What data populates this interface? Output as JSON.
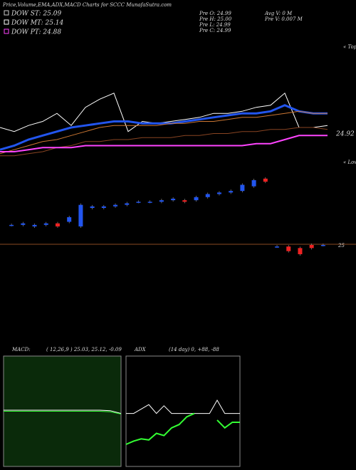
{
  "header": {
    "title": "Price,Volume,EMA,ADX,MACD Charts for SCCC MunafaSutra.com",
    "dow": [
      {
        "label": "DOW ST: 25.09",
        "color": "#cccccc"
      },
      {
        "label": "DOW MT: 25.14",
        "color": "#ffffff"
      },
      {
        "label": "DOW PT: 24.88",
        "color": "#ff44ff"
      }
    ],
    "info": [
      "Pre  O: 24.99",
      "Pre  H: 25.00",
      "Pre  L: 24.99",
      "Pre  C: 24.99"
    ],
    "info2": [
      "Avg V: 0  M",
      "Pre   V: 0.007 M"
    ]
  },
  "chart_data": [
    {
      "type": "line",
      "tops_label": "« Tops",
      "lows_label": "« Lows",
      "annotation": "24.92",
      "ylim": [
        24.7,
        25.3
      ],
      "series": [
        {
          "name": "price",
          "color": "#ffffff",
          "width": 1,
          "values": [
            24.88,
            24.86,
            24.89,
            24.91,
            24.95,
            24.89,
            24.98,
            25.02,
            25.05,
            24.86,
            24.91,
            24.9,
            24.91,
            24.92,
            24.93,
            24.95,
            24.95,
            24.96,
            24.98,
            24.99,
            25.05,
            24.88,
            24.88,
            24.89
          ]
        },
        {
          "name": "ema-short",
          "color": "#2255ee",
          "width": 3,
          "values": [
            24.77,
            24.79,
            24.82,
            24.84,
            24.86,
            24.88,
            24.89,
            24.9,
            24.91,
            24.91,
            24.9,
            24.9,
            24.9,
            24.91,
            24.92,
            24.93,
            24.94,
            24.95,
            24.95,
            24.96,
            24.99,
            24.96,
            24.95,
            24.95
          ]
        },
        {
          "name": "ema-mid",
          "color": "#cc7733",
          "width": 1,
          "values": [
            24.75,
            24.77,
            24.79,
            24.81,
            24.82,
            24.84,
            24.86,
            24.88,
            24.89,
            24.89,
            24.89,
            24.89,
            24.9,
            24.9,
            24.91,
            24.91,
            24.92,
            24.93,
            24.93,
            24.94,
            24.95,
            24.96,
            24.95,
            24.95
          ]
        },
        {
          "name": "ema-long",
          "color": "#884422",
          "width": 1,
          "values": [
            24.74,
            24.74,
            24.75,
            24.76,
            24.78,
            24.79,
            24.81,
            24.81,
            24.82,
            24.82,
            24.83,
            24.83,
            24.83,
            24.84,
            24.84,
            24.85,
            24.85,
            24.86,
            24.86,
            24.87,
            24.87,
            24.88,
            24.88,
            24.87
          ]
        },
        {
          "name": "dow-pt",
          "color": "#ff44ff",
          "width": 2,
          "values": [
            24.76,
            24.76,
            24.77,
            24.78,
            24.78,
            24.78,
            24.79,
            24.79,
            24.79,
            24.79,
            24.79,
            24.79,
            24.79,
            24.79,
            24.79,
            24.79,
            24.79,
            24.79,
            24.8,
            24.8,
            24.82,
            24.84,
            24.84,
            24.84
          ]
        }
      ]
    },
    {
      "type": "candlestick",
      "annotation": "25",
      "ylim": [
        24.6,
        25.2
      ],
      "open": [
        24.85,
        24.85,
        24.84,
        24.85,
        24.86,
        24.87,
        24.84,
        24.96,
        24.96,
        24.97,
        24.98,
        25.0,
        25.0,
        25.0,
        25.01,
        25.01,
        25.01,
        25.03,
        25.05,
        25.06,
        25.07,
        25.1,
        25.15,
        24.71,
        24.71,
        24.7,
        24.72,
        24.72
      ],
      "close": [
        24.85,
        24.86,
        24.85,
        24.86,
        24.84,
        24.9,
        24.98,
        24.97,
        24.97,
        24.98,
        24.99,
        25.0,
        25.0,
        25.01,
        25.02,
        25.0,
        25.03,
        25.05,
        25.06,
        25.07,
        25.11,
        25.14,
        25.13,
        24.71,
        24.68,
        24.66,
        24.7,
        24.72
      ]
    },
    {
      "type": "line",
      "title": "MACD:",
      "subtitle": "( 12,26,9 ) 25.03, 25.12, -0.09",
      "background": "#0a2a0a",
      "ylim": [
        -1,
        1
      ],
      "series": [
        {
          "name": "macd",
          "color": "#ffffff",
          "width": 1,
          "values": [
            0.02,
            0.02,
            0.02,
            0.02,
            0.02,
            0.02,
            0.02,
            0.02,
            0.02,
            0.02,
            0.01,
            -0.04
          ]
        },
        {
          "name": "signal",
          "color": "#33ff33",
          "width": 1,
          "values": [
            0.0,
            0.0,
            0.0,
            0.0,
            0.0,
            0.0,
            0.0,
            0.0,
            0.0,
            0.0,
            -0.01,
            -0.05
          ]
        }
      ]
    },
    {
      "type": "line",
      "title": "ADX",
      "subtitle": "(14  day) 0, +88, -88",
      "background": "#000000",
      "ylim": [
        0,
        100
      ],
      "series": [
        {
          "name": "adx",
          "color": "#ffffff",
          "width": 1,
          "values": [
            48,
            48,
            52,
            56,
            48,
            55,
            48,
            48,
            48,
            48,
            48,
            48,
            60,
            48,
            48,
            48
          ]
        },
        {
          "name": "plus-di",
          "color": "#33ff33",
          "width": 2,
          "values": [
            20,
            23,
            25,
            24,
            30,
            28,
            35,
            38,
            45,
            48,
            null,
            null,
            42,
            35,
            40,
            40
          ]
        }
      ]
    }
  ]
}
